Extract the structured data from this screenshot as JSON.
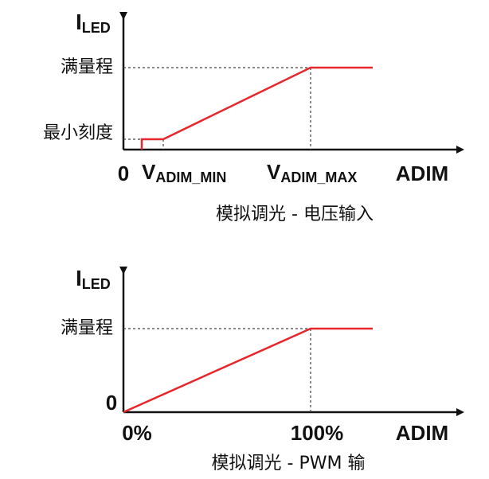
{
  "diagrams": [
    {
      "y_label": {
        "main": "I",
        "sub": "LED"
      },
      "full_scale": "满量程",
      "min_scale": "最小刻度",
      "origin": "0",
      "x_ticks": [
        {
          "main": "V",
          "sub": "ADIM_MIN"
        },
        {
          "main": "V",
          "sub": "ADIM_MAX"
        }
      ],
      "x_label": "ADIM",
      "caption": "模拟调光 - 电压输入"
    },
    {
      "y_label": {
        "main": "I",
        "sub": "LED"
      },
      "full_scale": "满量程",
      "origin": "0",
      "x_ticks": [
        "0%",
        "100%"
      ],
      "x_label": "ADIM",
      "caption": "模拟调光 - PWM 输"
    }
  ]
}
